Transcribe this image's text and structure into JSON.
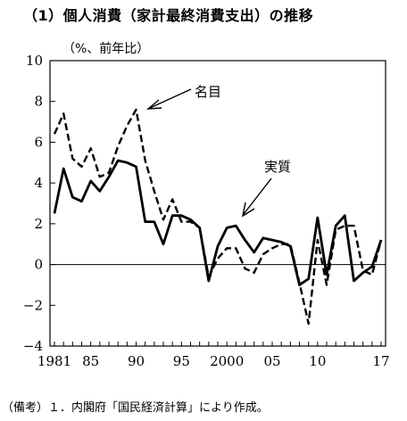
{
  "figure": {
    "title": "（1）個人消費（家計最終消費支出）の推移",
    "unit_label": "（%、前年比）",
    "note": "（備考）１．内閣府「国民経済計算」により作成。"
  },
  "chart_data": {
    "type": "line",
    "x": [
      1981,
      1982,
      1983,
      1984,
      1985,
      1986,
      1987,
      1988,
      1989,
      1990,
      1991,
      1992,
      1993,
      1994,
      1995,
      1996,
      1997,
      1998,
      1999,
      2000,
      2001,
      2002,
      2003,
      2004,
      2005,
      2006,
      2007,
      2008,
      2009,
      2010,
      2011,
      2012,
      2013,
      2014,
      2015,
      2016,
      2017
    ],
    "xtick_values": [
      1981,
      1985,
      1990,
      1995,
      2000,
      2005,
      2010,
      2017
    ],
    "xtick_labels": [
      "1981",
      "85",
      "90",
      "95",
      "2000",
      "05",
      "10",
      "17"
    ],
    "ylim": [
      -4,
      10
    ],
    "yticks": [
      -4,
      -2,
      0,
      2,
      4,
      6,
      8,
      10
    ],
    "series": [
      {
        "name": "名目",
        "style": "dashed",
        "values": [
          6.4,
          7.4,
          5.2,
          4.8,
          5.7,
          4.3,
          4.5,
          5.8,
          6.8,
          7.6,
          5.1,
          3.6,
          2.2,
          3.2,
          2.1,
          2.1,
          1.8,
          -0.6,
          0.3,
          0.8,
          0.8,
          -0.2,
          -0.4,
          0.5,
          0.8,
          1.0,
          1.0,
          -0.9,
          -2.9,
          1.2,
          -1.0,
          1.7,
          1.9,
          1.9,
          -0.3,
          -0.5,
          1.2
        ]
      },
      {
        "name": "実質",
        "style": "solid",
        "values": [
          2.5,
          4.7,
          3.3,
          3.1,
          4.1,
          3.6,
          4.3,
          5.1,
          5.0,
          4.8,
          2.1,
          2.1,
          1.0,
          2.4,
          2.4,
          2.2,
          1.8,
          -0.8,
          0.9,
          1.8,
          1.9,
          1.2,
          0.6,
          1.3,
          1.2,
          1.1,
          0.9,
          -1.0,
          -0.7,
          2.3,
          -0.5,
          1.9,
          2.4,
          -0.8,
          -0.4,
          -0.1,
          1.2
        ]
      }
    ],
    "zero_line": true,
    "grid": false,
    "legend": "inline-annotations"
  }
}
